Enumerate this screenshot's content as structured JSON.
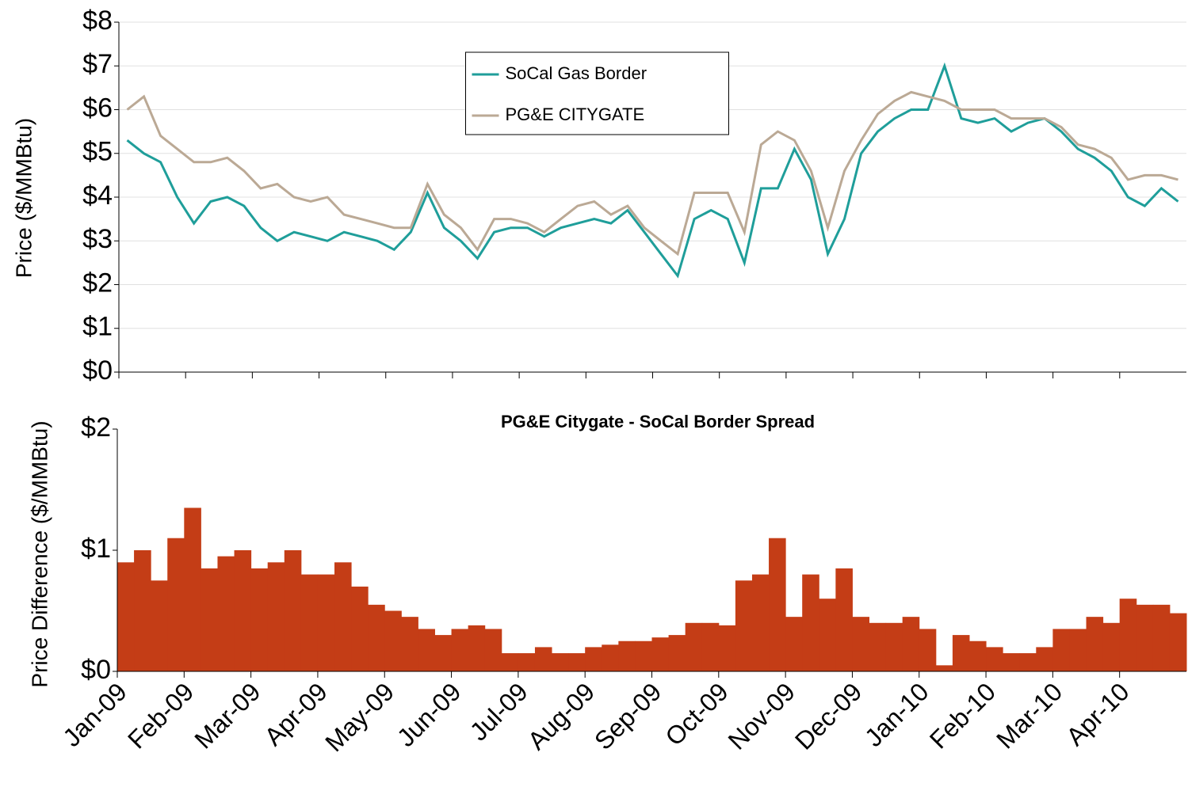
{
  "chart_data": [
    {
      "type": "line",
      "y_label": "Price ($/MMBtu)",
      "ylim": [
        0,
        8
      ],
      "yticks": [
        {
          "value": 0,
          "label": "$0"
        },
        {
          "value": 1,
          "label": "$1"
        },
        {
          "value": 2,
          "label": "$2"
        },
        {
          "value": 3,
          "label": "$3"
        },
        {
          "value": 4,
          "label": "$4"
        },
        {
          "value": 5,
          "label": "$5"
        },
        {
          "value": 6,
          "label": "$6"
        },
        {
          "value": 7,
          "label": "$7"
        },
        {
          "value": 8,
          "label": "$8"
        }
      ],
      "grid": true,
      "legend": "upper center",
      "series": [
        {
          "name": "SoCal Gas Border",
          "color": "#1f9e9a",
          "values": [
            5.3,
            5.0,
            4.8,
            4.0,
            3.4,
            3.9,
            4.0,
            3.8,
            3.3,
            3.0,
            3.2,
            3.1,
            3.0,
            3.2,
            3.1,
            3.0,
            2.8,
            3.2,
            4.1,
            3.3,
            3.0,
            2.6,
            3.2,
            3.3,
            3.3,
            3.1,
            3.3,
            3.4,
            3.5,
            3.4,
            3.7,
            3.2,
            2.7,
            2.2,
            3.5,
            3.7,
            3.5,
            2.5,
            4.2,
            4.2,
            5.1,
            4.4,
            2.7,
            3.5,
            5.0,
            5.5,
            5.8,
            6.0,
            6.0,
            7.0,
            5.8,
            5.7,
            5.8,
            5.5,
            5.7,
            5.8,
            5.5,
            5.1,
            4.9,
            4.6,
            4.0,
            3.8,
            4.2,
            3.9
          ]
        },
        {
          "name": "PG&E CITYGATE",
          "color": "#bba995",
          "values": [
            6.0,
            6.3,
            5.4,
            5.1,
            4.8,
            4.8,
            4.9,
            4.6,
            4.2,
            4.3,
            4.0,
            3.9,
            4.0,
            3.6,
            3.5,
            3.4,
            3.3,
            3.3,
            4.3,
            3.6,
            3.3,
            2.8,
            3.5,
            3.5,
            3.4,
            3.2,
            3.5,
            3.8,
            3.9,
            3.6,
            3.8,
            3.3,
            3.0,
            2.7,
            4.1,
            4.1,
            4.1,
            3.2,
            5.2,
            5.5,
            5.3,
            4.6,
            3.3,
            4.6,
            5.3,
            5.9,
            6.2,
            6.4,
            6.3,
            6.2,
            6.0,
            6.0,
            6.0,
            5.8,
            5.8,
            5.8,
            5.6,
            5.2,
            5.1,
            4.9,
            4.4,
            4.5,
            4.5,
            4.4
          ]
        }
      ]
    },
    {
      "type": "bar",
      "title": "PG&E Citygate - SoCal Border Spread",
      "y_label": "Price Difference ($/MMBtu)",
      "categories": [
        "Jan-09",
        null,
        null,
        null,
        "Feb-09",
        null,
        null,
        null,
        "Mar-09",
        null,
        null,
        null,
        "Apr-09",
        null,
        null,
        null,
        "May-09",
        null,
        null,
        null,
        "Jun-09",
        null,
        null,
        null,
        "Jul-09",
        null,
        null,
        null,
        "Aug-09",
        null,
        null,
        null,
        "Sep-09",
        null,
        null,
        null,
        "Oct-09",
        null,
        null,
        null,
        "Nov-09",
        null,
        null,
        null,
        "Dec-09",
        null,
        null,
        null,
        "Jan-10",
        null,
        null,
        null,
        "Feb-10",
        null,
        null,
        null,
        "Mar-10",
        null,
        null,
        null,
        "Apr-10",
        null,
        null,
        null
      ],
      "ylim": [
        0,
        2
      ],
      "yticks": [
        {
          "value": 0,
          "label": "$0"
        },
        {
          "value": 1,
          "label": "$1"
        },
        {
          "value": 2,
          "label": "$2"
        }
      ],
      "color": "#c43d16",
      "values": [
        0.9,
        1.0,
        0.75,
        1.1,
        1.35,
        0.85,
        0.95,
        1.0,
        0.85,
        0.9,
        1.0,
        0.8,
        0.8,
        0.9,
        0.7,
        0.55,
        0.5,
        0.45,
        0.35,
        0.3,
        0.35,
        0.38,
        0.35,
        0.15,
        0.15,
        0.2,
        0.15,
        0.15,
        0.2,
        0.22,
        0.25,
        0.25,
        0.28,
        0.3,
        0.4,
        0.4,
        0.38,
        0.75,
        0.8,
        1.1,
        0.45,
        0.8,
        0.6,
        0.85,
        0.45,
        0.4,
        0.4,
        0.45,
        0.35,
        0.05,
        0.3,
        0.25,
        0.2,
        0.15,
        0.15,
        0.2,
        0.35,
        0.35,
        0.45,
        0.4,
        0.6,
        0.55,
        0.55,
        0.48
      ]
    }
  ]
}
